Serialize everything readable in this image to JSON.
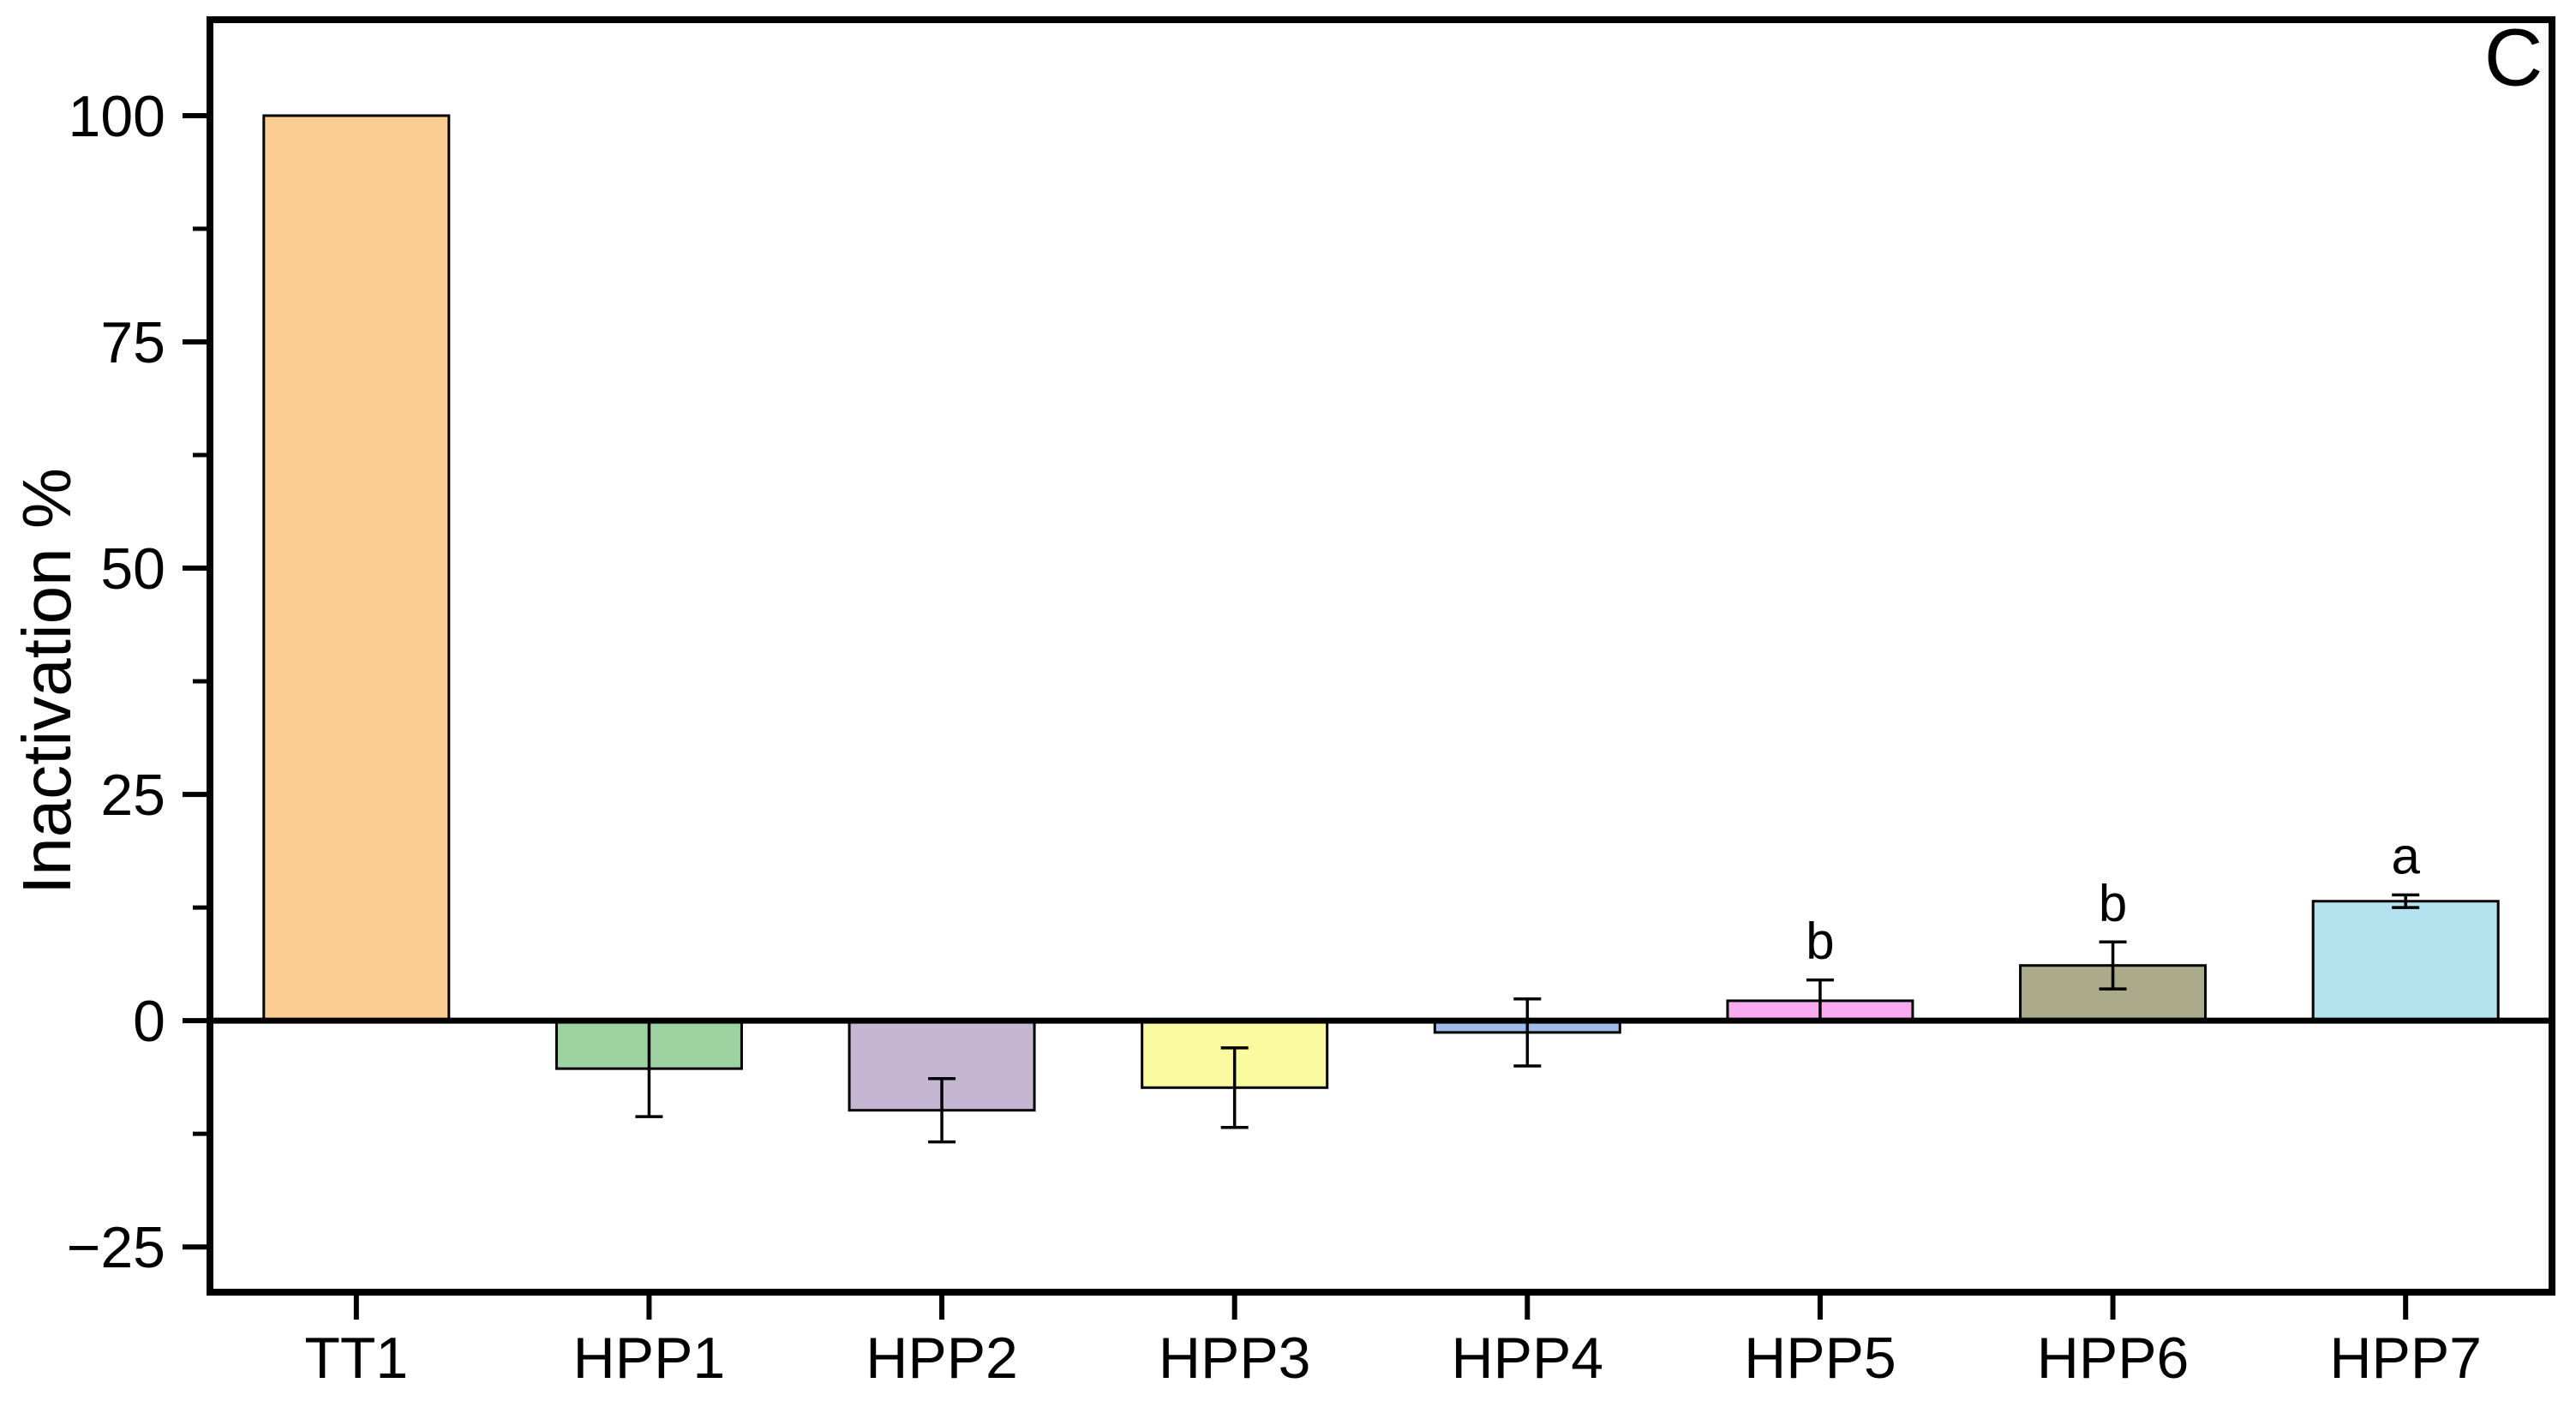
{
  "chart_data": {
    "type": "bar",
    "title": "",
    "panel_label": "C",
    "xlabel": "",
    "ylabel": "Inactivation %",
    "categories": [
      "TT1",
      "HPP1",
      "HPP2",
      "HPP3",
      "HPP4",
      "HPP5",
      "HPP6",
      "HPP7"
    ],
    "values": [
      100,
      -5.3,
      -9.9,
      -7.4,
      -1.3,
      2.2,
      6.1,
      13.2
    ],
    "errors": [
      0,
      5.3,
      3.5,
      4.4,
      3.7,
      2.3,
      2.6,
      0.7
    ],
    "significance_letters": [
      "",
      "",
      "",
      "",
      "",
      "b",
      "b",
      "a"
    ],
    "bar_colors": [
      "#FBCD92",
      "#9CD3A0",
      "#C5B7D3",
      "#FAFAA0",
      "#9EBDEC",
      "#FAAAF0",
      "#ABAB8B",
      "#B4E3EF"
    ],
    "bar_edge_color": "#000000",
    "error_bar_color": "#000000",
    "axis_color": "#000000",
    "background_color": "#FFFFFF",
    "ylim": [
      -30,
      110.6
    ],
    "yticks": {
      "major": [
        -25,
        0,
        25,
        50,
        75,
        100
      ],
      "major_labels": [
        "−25",
        "0",
        "25",
        "50",
        "75",
        "100"
      ],
      "minor": [
        -12.5,
        12.5,
        37.5,
        62.5,
        87.5
      ]
    },
    "grid": "off",
    "legend": "none",
    "baseline_at_zero": true
  }
}
